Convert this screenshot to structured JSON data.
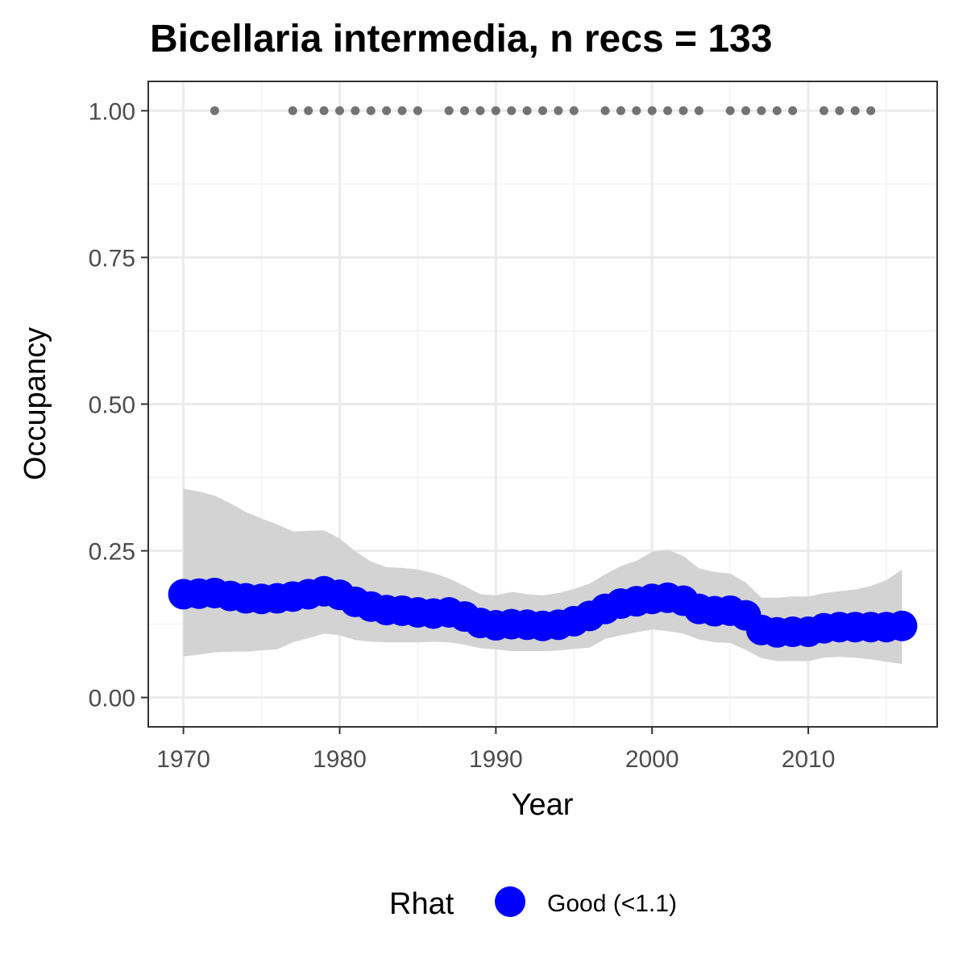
{
  "chart_data": {
    "type": "line",
    "title": "Bicellaria intermedia, n recs = 133",
    "xlabel": "Year",
    "ylabel": "Occupancy",
    "xlim": [
      1967.75,
      2018.25
    ],
    "ylim": [
      -0.05,
      1.05
    ],
    "x_ticks": [
      1970,
      1980,
      1990,
      2000,
      2010
    ],
    "x_tick_labels": [
      "1970",
      "1980",
      "1990",
      "2000",
      "2010"
    ],
    "y_ticks": [
      0,
      0.25,
      0.5,
      0.75,
      1
    ],
    "y_tick_labels": [
      "0.00",
      "0.25",
      "0.50",
      "0.75",
      "1.00"
    ],
    "grid": true,
    "series": [
      {
        "name": "Good (<1.1)",
        "x": [
          1970,
          1971,
          1972,
          1973,
          1974,
          1975,
          1976,
          1977,
          1978,
          1979,
          1980,
          1981,
          1982,
          1983,
          1984,
          1985,
          1986,
          1987,
          1988,
          1989,
          1990,
          1991,
          1992,
          1993,
          1994,
          1995,
          1996,
          1997,
          1998,
          1999,
          2000,
          2001,
          2002,
          2003,
          2004,
          2005,
          2006,
          2007,
          2008,
          2009,
          2010,
          2011,
          2012,
          2013,
          2014,
          2015,
          2016
        ],
        "y": [
          0.176,
          0.177,
          0.178,
          0.173,
          0.169,
          0.168,
          0.169,
          0.172,
          0.176,
          0.181,
          0.175,
          0.163,
          0.155,
          0.149,
          0.148,
          0.145,
          0.143,
          0.145,
          0.138,
          0.127,
          0.123,
          0.125,
          0.124,
          0.122,
          0.124,
          0.13,
          0.139,
          0.151,
          0.16,
          0.164,
          0.168,
          0.17,
          0.165,
          0.151,
          0.147,
          0.148,
          0.14,
          0.115,
          0.111,
          0.112,
          0.112,
          0.118,
          0.12,
          0.12,
          0.12,
          0.12,
          0.122
        ],
        "lower": [
          0.07,
          0.073,
          0.077,
          0.078,
          0.078,
          0.08,
          0.082,
          0.094,
          0.101,
          0.109,
          0.106,
          0.098,
          0.095,
          0.094,
          0.094,
          0.094,
          0.095,
          0.094,
          0.09,
          0.084,
          0.082,
          0.079,
          0.079,
          0.079,
          0.08,
          0.083,
          0.085,
          0.1,
          0.106,
          0.111,
          0.116,
          0.113,
          0.109,
          0.099,
          0.094,
          0.093,
          0.081,
          0.067,
          0.062,
          0.062,
          0.062,
          0.068,
          0.069,
          0.068,
          0.065,
          0.061,
          0.057
        ],
        "upper": [
          0.356,
          0.351,
          0.344,
          0.331,
          0.316,
          0.305,
          0.295,
          0.283,
          0.284,
          0.285,
          0.271,
          0.249,
          0.232,
          0.222,
          0.221,
          0.218,
          0.212,
          0.203,
          0.19,
          0.176,
          0.174,
          0.18,
          0.176,
          0.174,
          0.178,
          0.185,
          0.194,
          0.21,
          0.224,
          0.233,
          0.248,
          0.252,
          0.241,
          0.22,
          0.214,
          0.211,
          0.196,
          0.17,
          0.17,
          0.172,
          0.172,
          0.178,
          0.181,
          0.184,
          0.19,
          0.2,
          0.218
        ],
        "color": "#0000ff"
      }
    ],
    "records": {
      "name": "detections",
      "y": 1,
      "x": [
        1972,
        1977,
        1978,
        1979,
        1980,
        1981,
        1982,
        1983,
        1984,
        1985,
        1987,
        1988,
        1989,
        1990,
        1991,
        1992,
        1993,
        1994,
        1995,
        1997,
        1998,
        1999,
        2000,
        2001,
        2002,
        2003,
        2005,
        2006,
        2007,
        2008,
        2009,
        2011,
        2012,
        2013,
        2014
      ],
      "color": "#737373"
    },
    "ribbon_color": "#d3d3d3",
    "legend": {
      "title": "Rhat",
      "entries": [
        "Good (<1.1)"
      ],
      "position": "bottom"
    }
  }
}
